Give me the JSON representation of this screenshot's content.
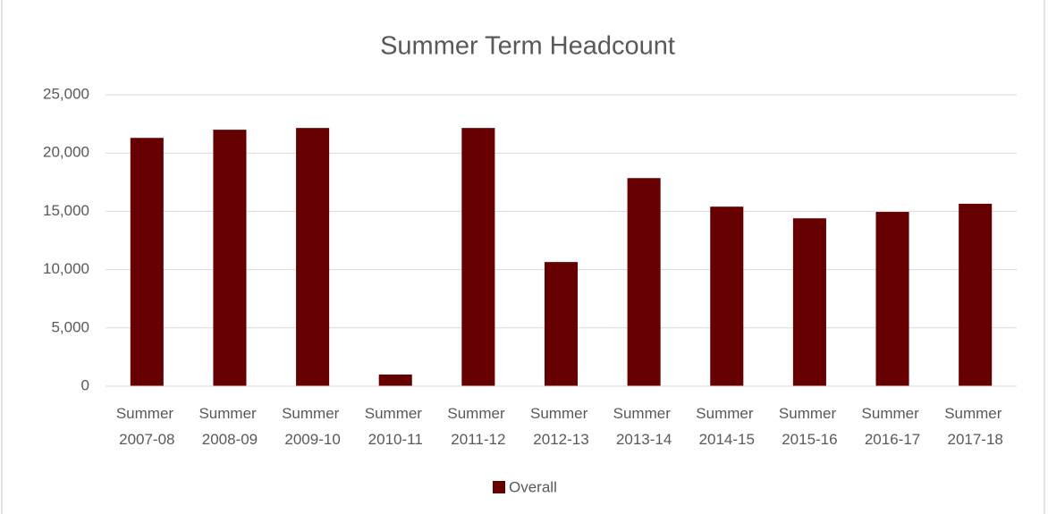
{
  "chart_data": {
    "type": "bar",
    "title": "Summer Term Headcount",
    "categories": [
      "Summer 2007-08",
      "Summer 2008-09",
      "Summer 2009-10",
      "Summer 2010-11",
      "Summer 2011-12",
      "Summer 2012-13",
      "Summer 2013-14",
      "Summer 2014-15",
      "Summer 2015-16",
      "Summer 2016-17",
      "Summer 2017-18"
    ],
    "series": [
      {
        "name": "Overall",
        "color": "#660000",
        "values": [
          21300,
          22000,
          22150,
          1000,
          22150,
          10650,
          17850,
          15400,
          14400,
          14950,
          15650
        ]
      }
    ],
    "ylim": [
      0,
      25000
    ],
    "yticks": [
      0,
      {
        "value": 5000,
        "label": "5,000"
      },
      {
        "value": 10000,
        "label": "10,000"
      },
      {
        "value": 15000,
        "label": "15,000"
      },
      {
        "value": 20000,
        "label": "20,000"
      },
      {
        "value": 25000,
        "label": "25,000"
      }
    ],
    "grid": true,
    "legend": "bottom"
  }
}
